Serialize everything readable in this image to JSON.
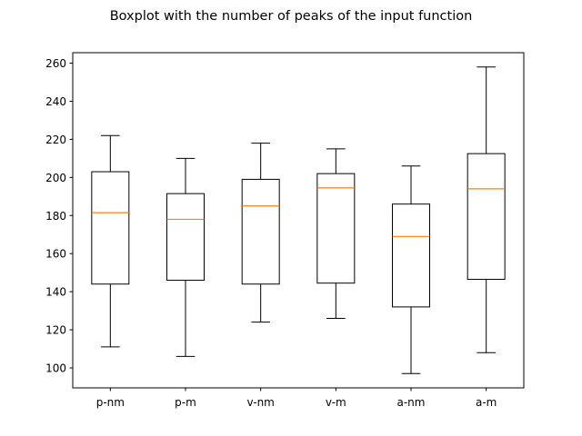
{
  "chart_data": {
    "type": "boxplot",
    "title": "Boxplot with the number of peaks of the input function",
    "xlabel": "",
    "ylabel": "",
    "categories": [
      "p-nm",
      "p-m",
      "v-nm",
      "v-m",
      "a-nm",
      "a-m"
    ],
    "boxes": [
      {
        "label": "p-nm",
        "whisker_low": 111,
        "q1": 144,
        "median": 181.5,
        "q3": 203,
        "whisker_high": 222
      },
      {
        "label": "p-m",
        "whisker_low": 106,
        "q1": 146,
        "median": 178,
        "q3": 191.5,
        "whisker_high": 210
      },
      {
        "label": "v-nm",
        "whisker_low": 124,
        "q1": 144,
        "median": 185,
        "q3": 199,
        "whisker_high": 218
      },
      {
        "label": "v-m",
        "whisker_low": 126,
        "q1": 144.5,
        "median": 194.5,
        "q3": 202,
        "whisker_high": 215
      },
      {
        "label": "a-nm",
        "whisker_low": 97,
        "q1": 132,
        "median": 169,
        "q3": 186,
        "whisker_high": 206
      },
      {
        "label": "a-m",
        "whisker_low": 108,
        "q1": 146.5,
        "median": 194,
        "q3": 212.5,
        "whisker_high": 258
      }
    ],
    "ylim": [
      89.5,
      265.5
    ],
    "yticks": [
      100,
      120,
      140,
      160,
      180,
      200,
      220,
      240,
      260
    ],
    "grid": false,
    "colors": {
      "box": "#000000",
      "median": "#ff7f0e",
      "axes": "#000000",
      "background": "#ffffff"
    }
  }
}
